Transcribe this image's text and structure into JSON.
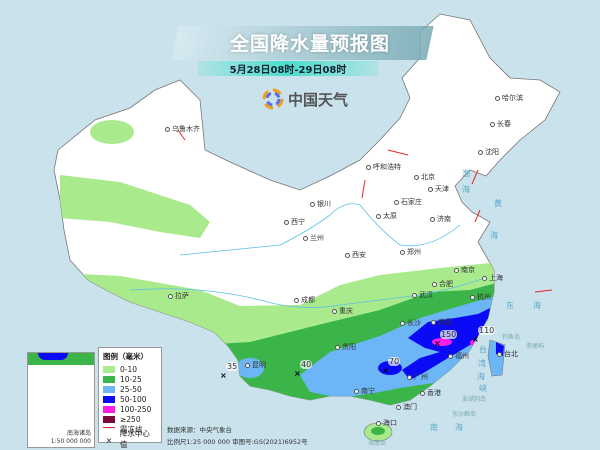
{
  "header": {
    "title": "全国降水量预报图",
    "subtitle": "5月28日08时-29日08时",
    "logo_text": "中国天气"
  },
  "colors": {
    "sea": "#c9e2ec",
    "land": "#ffffff",
    "r0_10": "#a8ea8c",
    "r10_25": "#3bb44a",
    "r25_50": "#6cb6f7",
    "r50_100": "#0a0af5",
    "r100_250": "#ff1ee6",
    "r250": "#7a0a3c",
    "frost": "#e8262a"
  },
  "legend": {
    "title": "图例（毫米）",
    "items": [
      {
        "label": "0-10",
        "color": "#a8ea8c"
      },
      {
        "label": "10-25",
        "color": "#3bb44a"
      },
      {
        "label": "25-50",
        "color": "#6cb6f7"
      },
      {
        "label": "50-100",
        "color": "#0a0af5"
      },
      {
        "label": "100-250",
        "color": "#ff1ee6"
      },
      {
        "label": "≥250",
        "color": "#7a0a3c"
      }
    ],
    "frost_line": "霜冻线",
    "center_value": "降水中心值"
  },
  "cities": [
    "乌鲁木齐",
    "哈尔滨",
    "长春",
    "沈阳",
    "呼和浩特",
    "北京",
    "天津",
    "石家庄",
    "银川",
    "太原",
    "济南",
    "西宁",
    "兰州",
    "西安",
    "郑州",
    "合肥",
    "南京",
    "上海",
    "拉萨",
    "成都",
    "武汉",
    "杭州",
    "重庆",
    "长沙",
    "南昌",
    "贵阳",
    "福州",
    "昆明",
    "台北",
    "广州",
    "南宁",
    "香港",
    "澳门",
    "海口"
  ],
  "seas": [
    "渤",
    "海",
    "黄",
    "海",
    "东",
    "海",
    "南",
    "海",
    "台",
    "湾",
    "海",
    "峡"
  ],
  "islands": [
    "钓鱼岛",
    "赤尾屿",
    "澎湖列岛",
    "东沙群岛",
    "海南岛"
  ],
  "center_values": [
    "150",
    "110",
    "70",
    "40",
    "35"
  ],
  "inset": {
    "title": "南海诸岛",
    "scale": "1:50 000 000"
  },
  "credits": {
    "source": "数据来源：中央气象台",
    "scale_review": "比例尺1:25 000 000    审图号:GS(2021)6952号"
  }
}
